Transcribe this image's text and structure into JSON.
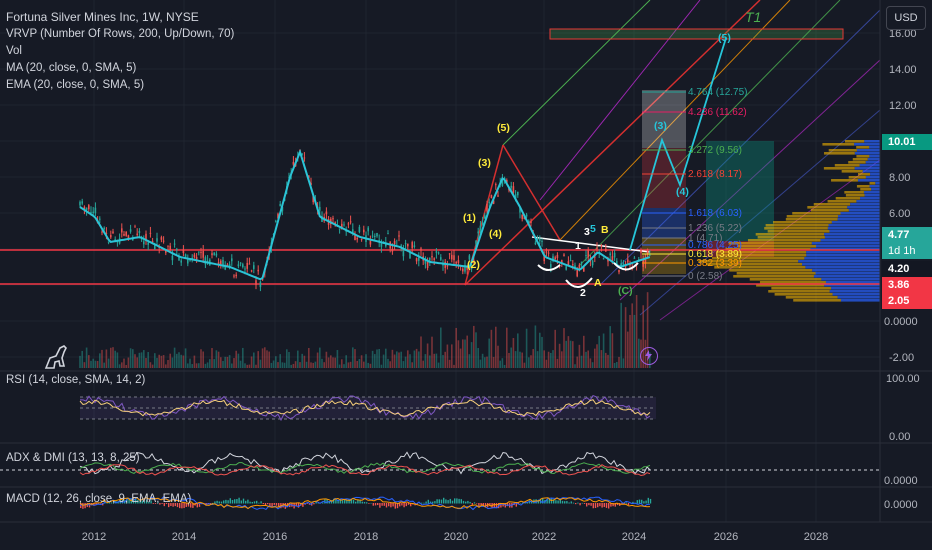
{
  "legend": {
    "title": "Fortuna Silver Mines Inc, 1W, NYSE",
    "vrvp": "VRVP (Number Of Rows, 200, Up/Down, 70)",
    "vol": "Vol",
    "ma": "MA (20, close, 0, SMA, 5)",
    "ema": "EMA (20, close, 0, SMA, 5)"
  },
  "currency": "USD",
  "price_axis": {
    "labels": [
      "16.00",
      "14.00",
      "12.00",
      "10.00",
      "8.00",
      "6.00",
      "0.0000",
      "-2.00"
    ],
    "tags": [
      {
        "text": "10.01",
        "color": "#089981"
      },
      {
        "text": "4.77",
        "color": "#26a69a"
      },
      {
        "text": "1d 1h",
        "color": "#26a69a"
      },
      {
        "text": "4.20",
        "color": "#131722"
      },
      {
        "text": "3.86",
        "color": "#f23645"
      },
      {
        "text": "2.05",
        "color": "#f23645"
      }
    ]
  },
  "fib_levels": [
    {
      "label": "4.764 (12.75)",
      "color": "#26a69a"
    },
    {
      "label": "4.236 (11.62)",
      "color": "#e91e63"
    },
    {
      "label": "3.272 (9.56)",
      "color": "#4caf50"
    },
    {
      "label": "2.618 (8.17)",
      "color": "#f44336"
    },
    {
      "label": "1.618 (6.03)",
      "color": "#2962ff"
    },
    {
      "label": "1.236 (5.22)",
      "color": "#787b86"
    },
    {
      "label": "1 (4.71)",
      "color": "#787b86"
    },
    {
      "label": "0.786 (4.25)",
      "color": "#2962ff"
    },
    {
      "label": "0.618 (3.89)",
      "color": "#ffeb3b"
    },
    {
      "label": "0.382 (3.39)",
      "color": "#ff9800"
    },
    {
      "label": "0 (2.58)",
      "color": "#787b86"
    }
  ],
  "wave_labels": {
    "w5": "(5)",
    "w3": "(3)",
    "w1": "(1)",
    "w4": "(4)",
    "w2": "(2)",
    "a": "A",
    "b": "B",
    "c": "(C)",
    "n1": "1",
    "n2": "2",
    "n3": "3",
    "n5": "5",
    "p3": "(3)",
    "p4": "(4)",
    "p5": "(5)"
  },
  "target_label": "T1",
  "x_axis": {
    "labels": [
      "2012",
      "2014",
      "2016",
      "2018",
      "2020",
      "2022",
      "2024",
      "2026",
      "2028"
    ]
  },
  "panes": {
    "rsi": {
      "title": "RSI (14, close, SMA, 14, 2)",
      "labels": [
        "100.00",
        "0.00"
      ]
    },
    "adx": {
      "title": "ADX & DMI (13, 13, 8, 25)",
      "labels": [
        "0.0000"
      ]
    },
    "macd": {
      "title": "MACD (12, 26, close, 9, EMA, EMA)",
      "labels": [
        "0.0000"
      ]
    }
  },
  "colors": {
    "up": "#26a69a",
    "down": "#ef5350",
    "ma": "#2bc4d6",
    "ema": "#f7d07a",
    "rsi": "#7e57c2",
    "accent": "#2962ff"
  }
}
